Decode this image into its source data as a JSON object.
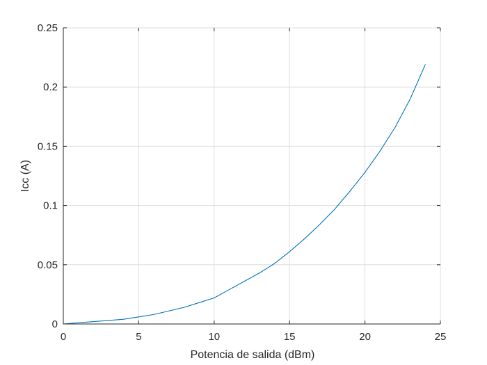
{
  "chart_data": {
    "type": "line",
    "title": "",
    "xlabel": "Potencia de salida (dBm)",
    "ylabel": "Icc (A)",
    "xlim": [
      0,
      25
    ],
    "ylim": [
      0,
      0.25
    ],
    "xticks": [
      0,
      5,
      10,
      15,
      20,
      25
    ],
    "xtick_labels": [
      "0",
      "5",
      "10",
      "15",
      "20",
      "25"
    ],
    "yticks": [
      0,
      0.05,
      0.1,
      0.15,
      0.2,
      0.25
    ],
    "ytick_labels": [
      "0",
      "0.05",
      "0.1",
      "0.15",
      "0.2",
      "0.25"
    ],
    "grid": true,
    "colors": {
      "line": "#0072bd",
      "grid": "#dedede",
      "axis": "#262626"
    },
    "series": [
      {
        "x": [
          0,
          1,
          2,
          3,
          4,
          5,
          6,
          7,
          8,
          9,
          10,
          11,
          12,
          13,
          14,
          15,
          16,
          17,
          18,
          19,
          20,
          21,
          22,
          23,
          24
        ],
        "y": [
          0.0,
          0.001,
          0.002,
          0.003,
          0.004,
          0.006,
          0.008,
          0.011,
          0.014,
          0.018,
          0.022,
          0.029,
          0.036,
          0.043,
          0.051,
          0.061,
          0.072,
          0.084,
          0.097,
          0.112,
          0.128,
          0.146,
          0.166,
          0.19,
          0.219
        ]
      }
    ]
  }
}
